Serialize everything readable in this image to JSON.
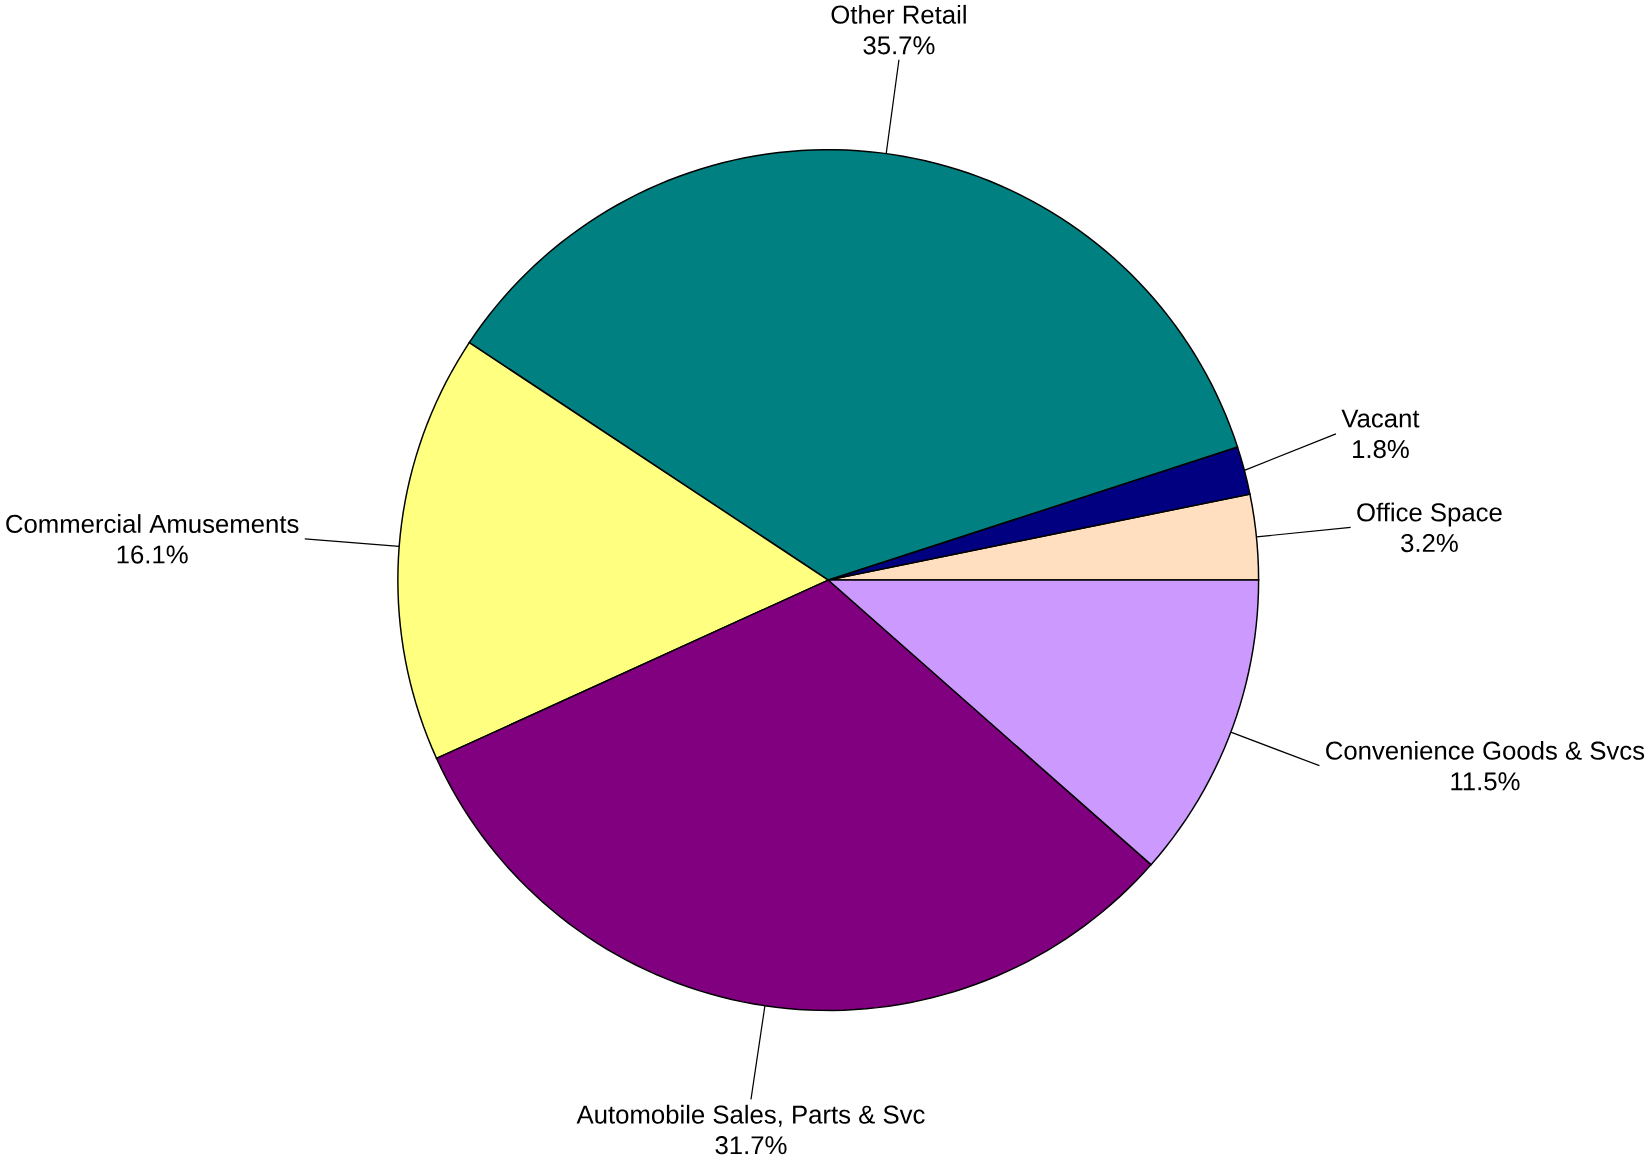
{
  "chart_data": {
    "type": "pie",
    "categories": [
      "Office Space",
      "Vacant",
      "Other Retail",
      "Commercial Amusements",
      "Automobile Sales, Parts & Svc",
      "Convenience Goods & Svcs"
    ],
    "values": [
      3.2,
      1.8,
      35.7,
      16.1,
      31.7,
      11.5
    ],
    "value_labels": [
      "3.2%",
      "1.8%",
      "35.7%",
      "16.1%",
      "31.7%",
      "11.5%"
    ],
    "colors": [
      "#ffdfbf",
      "#000080",
      "#008080",
      "#ffff80",
      "#800080",
      "#cc99ff"
    ]
  }
}
